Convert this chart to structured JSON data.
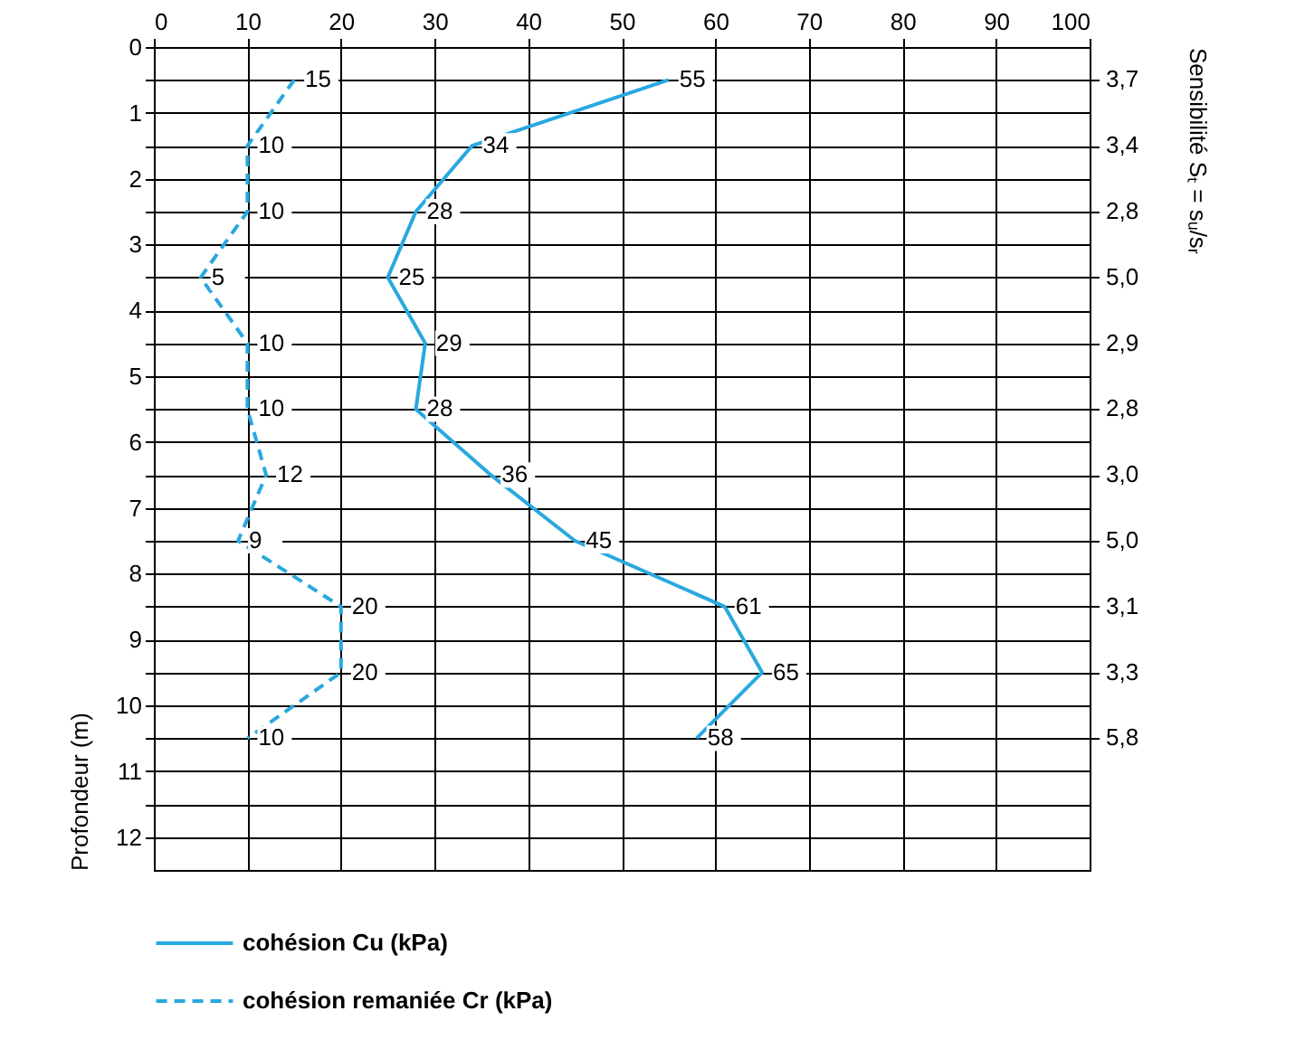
{
  "chart_data": {
    "type": "line",
    "orientation": "horizontal",
    "ylabel": "Profondeur (m)",
    "y2label": "Sensibilité Sₜ = sᵤ/sᵣ",
    "xlim": [
      0,
      100
    ],
    "xticks": [
      0,
      10,
      20,
      30,
      40,
      50,
      60,
      70,
      80,
      90,
      100
    ],
    "ylim": [
      12.5,
      0
    ],
    "yticks": [
      0,
      {
        "value": 0.5,
        "label": null
      },
      1,
      {
        "value": 1.5,
        "label": null
      },
      2,
      {
        "value": 2.5,
        "label": null
      },
      3,
      {
        "value": 3.5,
        "label": null
      },
      4,
      {
        "value": 4.5,
        "label": null
      },
      5,
      {
        "value": 5.5,
        "label": null
      },
      6,
      {
        "value": 6.5,
        "label": null
      },
      7,
      {
        "value": 7.5,
        "label": null
      },
      8,
      {
        "value": 8.5,
        "label": null
      },
      9,
      {
        "value": 9.5,
        "label": null
      },
      10,
      {
        "value": 10.5,
        "label": null
      },
      11,
      {
        "value": 11.5,
        "label": null
      },
      12
    ],
    "annotations": [
      "3,7",
      "3,4",
      "2,8",
      "5,0",
      "2,9",
      "2,8",
      "3,0",
      "5,0",
      "3,1",
      "3,3",
      "5,8"
    ],
    "grid": true,
    "legend": "bottom",
    "data_labels": true,
    "marker": "none",
    "series": [
      {
        "name": "cohésion Cu (kPa)",
        "color": "#29a8df",
        "line_style": "solid",
        "x": [
          0.5,
          1.5,
          2.5,
          3.5,
          4.5,
          5.5,
          6.5,
          7.5,
          8.5,
          9.5,
          10.5
        ],
        "values": [
          55,
          34,
          28,
          25,
          29,
          28,
          36,
          45,
          61,
          65,
          58
        ]
      },
      {
        "name": "cohésion remaniée Cr (kPa)",
        "color": "#29a8df",
        "line_style": "dashed",
        "x": [
          0.5,
          1.5,
          2.5,
          3.5,
          4.5,
          5.5,
          6.5,
          7.5,
          8.5,
          9.5,
          10.5
        ],
        "values": [
          15,
          10,
          10,
          5,
          10,
          10,
          12,
          9,
          20,
          20,
          10
        ]
      }
    ]
  }
}
